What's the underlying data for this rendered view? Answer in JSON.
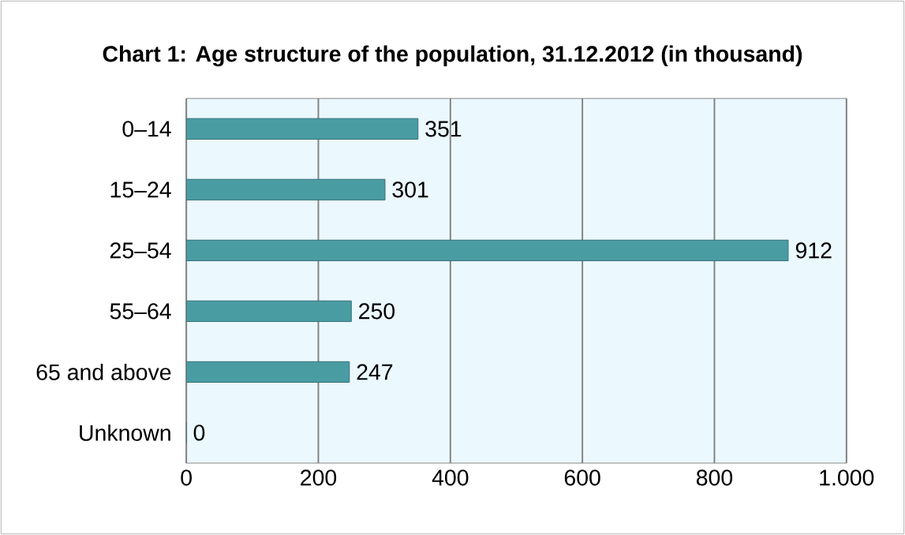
{
  "chart_data": {
    "type": "bar",
    "orientation": "horizontal",
    "title": "Chart 1: Age structure of the population, 31.12.2012 (in thousand)",
    "categories": [
      "0–14",
      "15–24",
      "25–54",
      "55–64",
      "65 and above",
      "Unknown"
    ],
    "values": [
      351,
      301,
      912,
      250,
      247,
      0
    ],
    "color": "#4a9ca3",
    "xlim": [
      0,
      1000
    ],
    "xticks": [
      0,
      200,
      400,
      600,
      800,
      {
        "value": 1000,
        "label": "1.000"
      }
    ],
    "grid": "x",
    "data_labels": true
  }
}
